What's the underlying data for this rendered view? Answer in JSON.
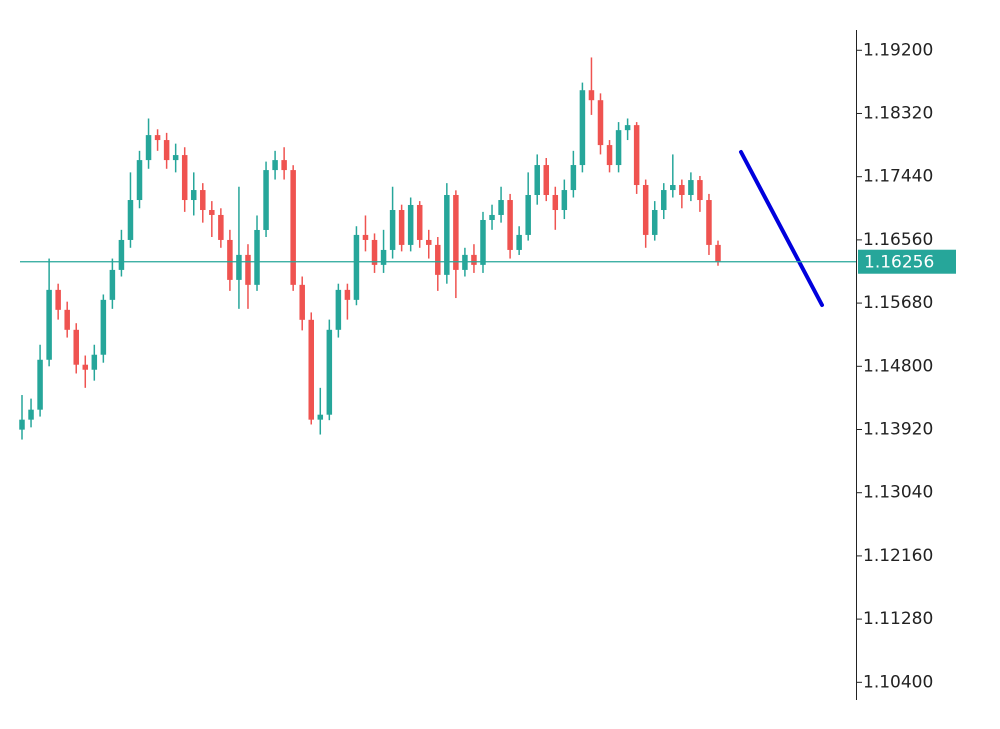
{
  "chart_data": {
    "type": "candlestick",
    "ylim": [
      1.0975,
      1.199
    ],
    "yticks": [
      {
        "value": 1.192,
        "label": "1.19200"
      },
      {
        "value": 1.1832,
        "label": "1.18320"
      },
      {
        "value": 1.1744,
        "label": "1.17440"
      },
      {
        "value": 1.1656,
        "label": "1.16560"
      },
      {
        "value": 1.1568,
        "label": "1.15680"
      },
      {
        "value": 1.148,
        "label": "1.14800"
      },
      {
        "value": 1.1392,
        "label": "1.13920"
      },
      {
        "value": 1.1304,
        "label": "1.13040"
      },
      {
        "value": 1.1216,
        "label": "1.12160"
      },
      {
        "value": 1.1128,
        "label": "1.11280"
      },
      {
        "value": 1.104,
        "label": "1.10400"
      }
    ],
    "up_color": "#26a69a",
    "down_color": "#ef5350",
    "last_price": 1.16256,
    "last_price_color": "#26a69a",
    "open": [
      1.13918,
      1.14057,
      1.14196,
      1.14891,
      1.15864,
      1.15586,
      1.15308,
      1.14822,
      1.14752,
      1.14961,
      1.15725,
      1.16142,
      1.16559,
      1.17115,
      1.17671,
      1.18019,
      1.1795,
      1.17671,
      1.17741,
      1.17115,
      1.17254,
      1.16976,
      1.16907,
      1.16559,
      1.16003,
      1.16351,
      1.15934,
      1.16698,
      1.17532,
      1.17671,
      1.17532,
      1.15934,
      1.15447,
      1.14057,
      1.14126,
      1.15308,
      1.15864,
      1.15725,
      1.16629,
      1.16559,
      1.16212,
      1.1642,
      1.16976,
      1.1649,
      1.17046,
      1.16559,
      1.1649,
      1.16073,
      1.17185,
      1.16142,
      1.16351,
      1.16212,
      1.16837,
      1.16907,
      1.17115,
      1.1642,
      1.16629,
      1.17185,
      1.17602,
      1.17185,
      1.16976,
      1.17254,
      1.17602,
      1.18644,
      1.18505,
      1.1788,
      1.17602,
      1.18088,
      1.18158,
      1.17324,
      1.16629,
      1.16976,
      1.17254,
      1.17324,
      1.17185,
      1.17393,
      1.17115,
      1.1649
    ],
    "high": [
      1.144,
      1.1435,
      1.151,
      1.163,
      1.1595,
      1.157,
      1.154,
      1.1495,
      1.151,
      1.158,
      1.163,
      1.167,
      1.175,
      1.178,
      1.1825,
      1.181,
      1.1805,
      1.179,
      1.1785,
      1.175,
      1.1735,
      1.171,
      1.17,
      1.167,
      1.173,
      1.165,
      1.169,
      1.1765,
      1.178,
      1.1785,
      1.176,
      1.1605,
      1.1555,
      1.145,
      1.1545,
      1.1595,
      1.1595,
      1.1675,
      1.169,
      1.1665,
      1.167,
      1.173,
      1.1705,
      1.1715,
      1.171,
      1.167,
      1.166,
      1.1735,
      1.1725,
      1.1645,
      1.165,
      1.1695,
      1.1705,
      1.173,
      1.172,
      1.1675,
      1.175,
      1.1775,
      1.177,
      1.173,
      1.174,
      1.178,
      1.1875,
      1.191,
      1.186,
      1.1795,
      1.182,
      1.1825,
      1.182,
      1.174,
      1.171,
      1.1735,
      1.1775,
      1.174,
      1.175,
      1.1745,
      1.172,
      1.1655
    ],
    "low": [
      1.1378,
      1.1395,
      1.141,
      1.148,
      1.1545,
      1.152,
      1.147,
      1.145,
      1.146,
      1.1485,
      1.156,
      1.1605,
      1.1645,
      1.17,
      1.1755,
      1.178,
      1.1755,
      1.175,
      1.1695,
      1.169,
      1.168,
      1.166,
      1.1645,
      1.1585,
      1.156,
      1.156,
      1.1585,
      1.166,
      1.174,
      1.174,
      1.1585,
      1.153,
      1.1399,
      1.1385,
      1.1405,
      1.152,
      1.1545,
      1.1565,
      1.164,
      1.161,
      1.161,
      1.163,
      1.164,
      1.164,
      1.1645,
      1.163,
      1.1585,
      1.1595,
      1.1575,
      1.1605,
      1.161,
      1.161,
      1.167,
      1.168,
      1.163,
      1.1635,
      1.1655,
      1.1705,
      1.171,
      1.167,
      1.1685,
      1.1715,
      1.175,
      1.183,
      1.1775,
      1.175,
      1.175,
      1.1795,
      1.172,
      1.1645,
      1.1655,
      1.1685,
      1.1715,
      1.17,
      1.171,
      1.1695,
      1.1635,
      1.162
    ],
    "close": [
      1.14057,
      1.14196,
      1.14891,
      1.15864,
      1.15586,
      1.15308,
      1.14822,
      1.14752,
      1.14961,
      1.15725,
      1.16142,
      1.16559,
      1.17115,
      1.17671,
      1.18019,
      1.1795,
      1.17671,
      1.17741,
      1.17115,
      1.17254,
      1.16976,
      1.16907,
      1.16559,
      1.16003,
      1.16351,
      1.15934,
      1.16698,
      1.17532,
      1.17671,
      1.17532,
      1.15934,
      1.15447,
      1.14057,
      1.14126,
      1.15308,
      1.15864,
      1.15725,
      1.16629,
      1.16559,
      1.16212,
      1.1642,
      1.16976,
      1.1649,
      1.17046,
      1.16559,
      1.1649,
      1.16073,
      1.17185,
      1.16142,
      1.16351,
      1.16212,
      1.16837,
      1.16907,
      1.17115,
      1.1642,
      1.16629,
      1.17185,
      1.17602,
      1.17185,
      1.16976,
      1.17254,
      1.17602,
      1.18644,
      1.18505,
      1.1788,
      1.17602,
      1.18088,
      1.18158,
      1.17324,
      1.16629,
      1.16976,
      1.17254,
      1.17324,
      1.17185,
      1.17393,
      1.17115,
      1.1649,
      1.16256
    ]
  }
}
